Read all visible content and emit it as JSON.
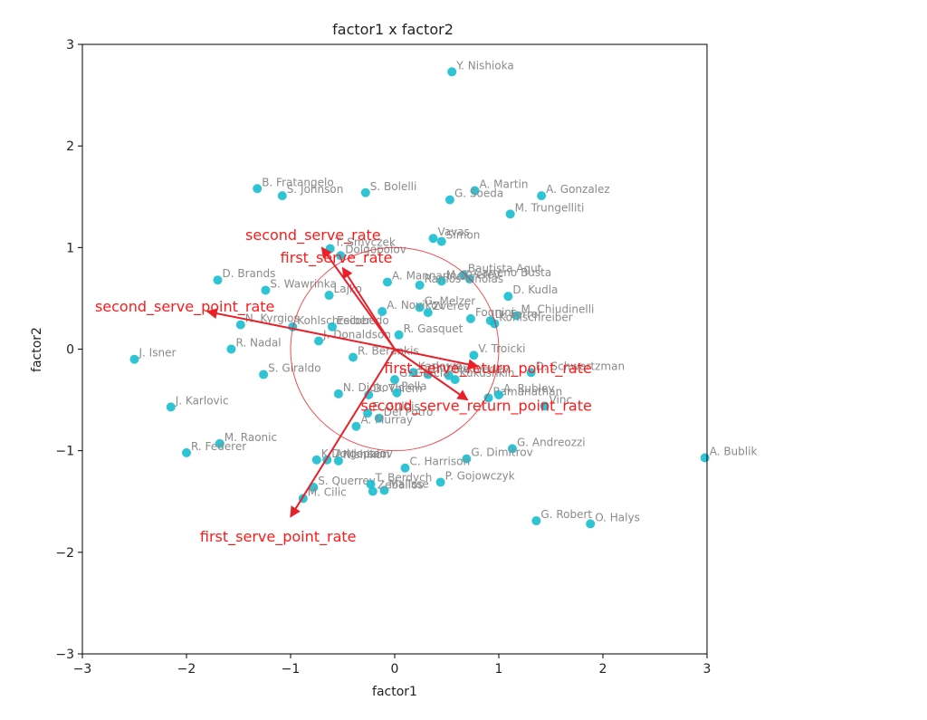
{
  "chart_data": {
    "type": "scatter",
    "title": "factor1 x factor2",
    "xlabel": "factor1",
    "ylabel": "factor2",
    "xlim": [
      -3,
      3
    ],
    "ylim": [
      -3,
      3
    ],
    "xticks": [
      -3,
      -2,
      -1,
      0,
      1,
      2,
      3
    ],
    "yticks": [
      -3,
      -2,
      -1,
      0,
      1,
      2,
      3
    ],
    "grid": false,
    "point_color": "#17becf",
    "arrow_color": "#e8202a",
    "circle_radius": 1.0,
    "points": [
      {
        "label": "Y. Nishioka",
        "x": 0.55,
        "y": 2.73
      },
      {
        "label": "B. Fratangelo",
        "x": -1.32,
        "y": 1.58
      },
      {
        "label": "S. Johnson",
        "x": -1.08,
        "y": 1.51
      },
      {
        "label": "S. Bolelli",
        "x": -0.28,
        "y": 1.54
      },
      {
        "label": "A. Martin",
        "x": 0.77,
        "y": 1.56
      },
      {
        "label": "G. Soeda",
        "x": 0.53,
        "y": 1.47
      },
      {
        "label": "A. Gonzalez",
        "x": 1.41,
        "y": 1.51
      },
      {
        "label": "M. Trungelliti",
        "x": 1.11,
        "y": 1.33
      },
      {
        "label": "Vavas",
        "x": 0.37,
        "y": 1.09
      },
      {
        "label": "Simon",
        "x": 0.45,
        "y": 1.06
      },
      {
        "label": "T. Smyczek",
        "x": -0.62,
        "y": 0.99
      },
      {
        "label": "Dolgopolov",
        "x": -0.52,
        "y": 0.92
      },
      {
        "label": "Bautista Agut",
        "x": 0.66,
        "y": 0.73
      },
      {
        "label": "D. Brands",
        "x": -1.7,
        "y": 0.68
      },
      {
        "label": "S. Wawrinka",
        "x": -1.24,
        "y": 0.58
      },
      {
        "label": "Lajko",
        "x": -0.63,
        "y": 0.53
      },
      {
        "label": "A. Mannarino",
        "x": -0.07,
        "y": 0.66
      },
      {
        "label": "M. Zverev",
        "x": 0.45,
        "y": 0.67
      },
      {
        "label": "Carreno Busta",
        "x": 0.72,
        "y": 0.69
      },
      {
        "label": "Ramos-Vinolas",
        "x": 0.24,
        "y": 0.63
      },
      {
        "label": "D. Kudla",
        "x": 1.09,
        "y": 0.52
      },
      {
        "label": "G. Melzer",
        "x": 0.24,
        "y": 0.41
      },
      {
        "label": "A. Novikov",
        "x": -0.12,
        "y": 0.37
      },
      {
        "label": "Zverev",
        "x": 0.32,
        "y": 0.36
      },
      {
        "label": "M. Chiudinelli",
        "x": 1.17,
        "y": 0.33
      },
      {
        "label": "Fognini",
        "x": 0.73,
        "y": 0.3
      },
      {
        "label": "D. Ferrer",
        "x": 0.92,
        "y": 0.28
      },
      {
        "label": "Kohlschreiber",
        "x": 0.96,
        "y": 0.25
      },
      {
        "label": "N. Kyrgios",
        "x": -1.48,
        "y": 0.24
      },
      {
        "label": "Kohlschreiber",
        "x": -0.98,
        "y": 0.22
      },
      {
        "label": "Escobedo",
        "x": -0.6,
        "y": 0.22
      },
      {
        "label": "R. Gasquet",
        "x": 0.04,
        "y": 0.14
      },
      {
        "label": "J. Donaldson",
        "x": -0.73,
        "y": 0.08
      },
      {
        "label": "J. Isner",
        "x": -2.5,
        "y": -0.1
      },
      {
        "label": "R. Nadal",
        "x": -1.57,
        "y": 0.0
      },
      {
        "label": "R. Berankis",
        "x": -0.4,
        "y": -0.08
      },
      {
        "label": "V. Troicki",
        "x": 0.76,
        "y": -0.06
      },
      {
        "label": "S. Giraldo",
        "x": -1.26,
        "y": -0.25
      },
      {
        "label": "D. Schwartzman",
        "x": 1.31,
        "y": -0.23
      },
      {
        "label": "Karlovic",
        "x": 0.18,
        "y": -0.23
      },
      {
        "label": "Rublev",
        "x": 0.32,
        "y": -0.25
      },
      {
        "label": "Medvedev",
        "x": 0.52,
        "y": -0.26
      },
      {
        "label": "Kukushkin",
        "x": 0.58,
        "y": -0.3
      },
      {
        "label": "G. Garcia",
        "x": 0.0,
        "y": -0.3
      },
      {
        "label": "N. Djokovic",
        "x": -0.54,
        "y": -0.44
      },
      {
        "label": "D. Thiem",
        "x": -0.25,
        "y": -0.45
      },
      {
        "label": "Pella",
        "x": 0.02,
        "y": -0.43
      },
      {
        "label": "Ramanathan",
        "x": 0.9,
        "y": -0.48
      },
      {
        "label": "A. Rublev",
        "x": 1.0,
        "y": -0.45
      },
      {
        "label": "Vinc",
        "x": 1.44,
        "y": -0.56
      },
      {
        "label": "J. Karlovic",
        "x": -2.15,
        "y": -0.57
      },
      {
        "label": "E. Gulbis",
        "x": -0.26,
        "y": -0.63
      },
      {
        "label": "Del Potro",
        "x": -0.15,
        "y": -0.68
      },
      {
        "label": "A. Murray",
        "x": -0.37,
        "y": -0.76
      },
      {
        "label": "M. Raonic",
        "x": -1.68,
        "y": -0.93
      },
      {
        "label": "R. Federer",
        "x": -2.0,
        "y": -1.02
      },
      {
        "label": "G. Andreozzi",
        "x": 1.13,
        "y": -0.98
      },
      {
        "label": "K. Anderson",
        "x": -0.75,
        "y": -1.09
      },
      {
        "label": "Dolgopolov",
        "x": -0.65,
        "y": -1.09
      },
      {
        "label": "Nishikori",
        "x": -0.54,
        "y": -1.1
      },
      {
        "label": "G. Dimitrov",
        "x": 0.69,
        "y": -1.08
      },
      {
        "label": "C. Harrison",
        "x": 0.1,
        "y": -1.17
      },
      {
        "label": "S. Querrey",
        "x": -0.78,
        "y": -1.36
      },
      {
        "label": "T. Berdych",
        "x": -0.23,
        "y": -1.33
      },
      {
        "label": "Malisse",
        "x": -0.1,
        "y": -1.39
      },
      {
        "label": "Zeballos",
        "x": -0.21,
        "y": -1.4
      },
      {
        "label": "P. Gojowczyk",
        "x": 0.44,
        "y": -1.31
      },
      {
        "label": "M. Cilic",
        "x": -0.88,
        "y": -1.47
      },
      {
        "label": "G. Robert",
        "x": 1.36,
        "y": -1.69
      },
      {
        "label": "O. Halys",
        "x": 1.88,
        "y": -1.72
      },
      {
        "label": "A. Bublik",
        "x": 2.98,
        "y": -1.07
      }
    ],
    "loadings": [
      {
        "name": "second_serve_rate",
        "x": -0.7,
        "y": 1.0
      },
      {
        "name": "first_serve_rate",
        "x": -0.5,
        "y": 0.8
      },
      {
        "name": "second_serve_point_rate",
        "x": -1.8,
        "y": 0.37
      },
      {
        "name": "first_serve_return_point_rate",
        "x": 0.8,
        "y": -0.17
      },
      {
        "name": "second_serve_return_point_rate",
        "x": 0.7,
        "y": -0.5
      },
      {
        "name": "first_serve_point_rate",
        "x": -1.0,
        "y": -1.65
      }
    ]
  }
}
